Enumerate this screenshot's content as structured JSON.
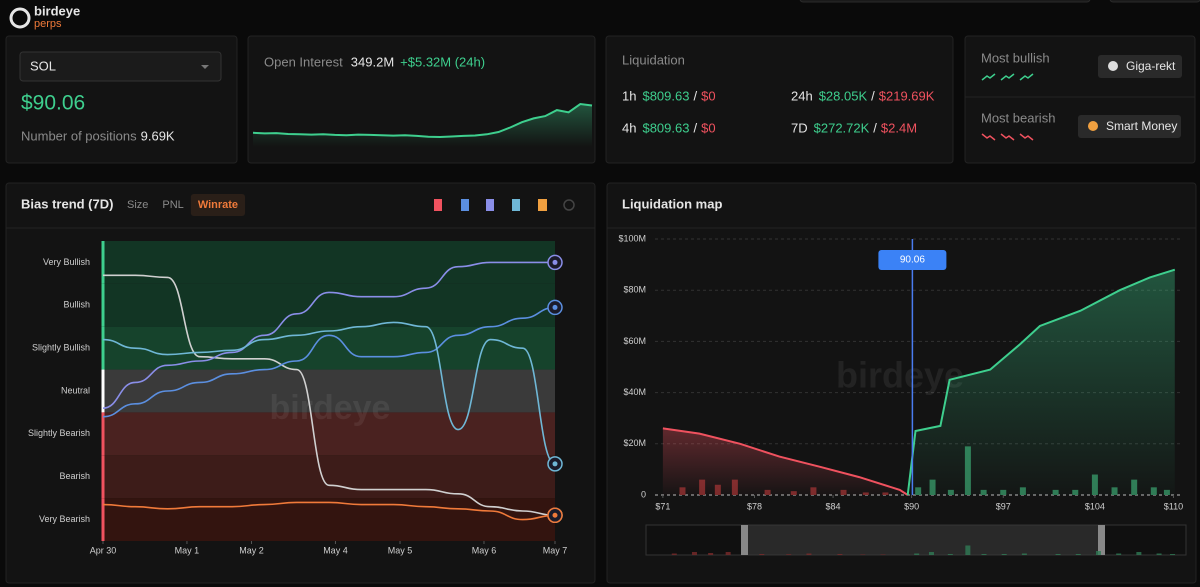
{
  "header": {
    "logo_top": "birdeye",
    "logo_bottom": "perps"
  },
  "market": {
    "symbol": "SOL",
    "price": "$90.06",
    "positions_label": "Number of positions",
    "positions_value": "9.69K"
  },
  "open_interest": {
    "label": "Open Interest",
    "value": "349.2M",
    "change": "+$5.32M (24h)",
    "color": "#3ecf8e",
    "values": [
      15,
      14.6,
      14.8,
      14.2,
      14,
      13.8,
      14,
      13.6,
      13.4,
      13.8,
      13.6,
      13.3,
      13.1,
      13.4,
      12.9,
      12.4,
      12.2,
      12.5,
      12.9,
      13.2,
      14,
      15.5,
      18.5,
      22,
      24.5,
      26,
      30,
      28.5,
      34,
      33
    ]
  },
  "liquidation": {
    "title": "Liquidation",
    "separator": "/",
    "rows": [
      {
        "period": "1h",
        "long": "$809.63",
        "short": "$0"
      },
      {
        "period": "24h",
        "long": "$28.05K",
        "short": "$219.69K"
      },
      {
        "period": "4h",
        "long": "$809.63",
        "short": "$0"
      },
      {
        "period": "7D",
        "long": "$272.72K",
        "short": "$2.4M"
      }
    ]
  },
  "sentiment": {
    "bullish_label": "Most bullish",
    "bullish_name": "Giga-rekt",
    "bearish_label": "Most bearish",
    "bearish_name": "Smart Money"
  },
  "bias_trend": {
    "title": "Bias trend (7D)",
    "tabs": [
      "Size",
      "PNL",
      "Winrate"
    ],
    "active_tab": 2,
    "watermark": "birdeye",
    "ylim": [
      -3.5,
      3.5
    ],
    "yticks": [
      {
        "value": 3,
        "label": "Very Bullish"
      },
      {
        "value": 2,
        "label": "Bullish"
      },
      {
        "value": 1,
        "label": "Slightly Bullish"
      },
      {
        "value": 0,
        "label": "Neutral"
      },
      {
        "value": -1,
        "label": "Slightly Bearish"
      },
      {
        "value": -2,
        "label": "Bearish"
      },
      {
        "value": -3,
        "label": "Very Bearish"
      }
    ],
    "band_colors": [
      "#123524",
      "#123524",
      "#16432c",
      "#3a3a3a",
      "#4a2220",
      "#3d1c19",
      "#33140f"
    ],
    "xlim": [
      0,
      7
    ],
    "xticks": [
      {
        "value": 0,
        "label": "Apr 30"
      },
      {
        "value": 1.3,
        "label": "May 1"
      },
      {
        "value": 2.3,
        "label": "May 2"
      },
      {
        "value": 3.6,
        "label": "May 4"
      },
      {
        "value": 4.6,
        "label": "May 5"
      },
      {
        "value": 5.9,
        "label": "May 6"
      },
      {
        "value": 7,
        "label": "May 7"
      }
    ],
    "x": [
      0,
      0.5,
      1,
      1.5,
      2,
      2.5,
      3,
      3.5,
      4,
      4.5,
      5,
      5.5,
      6,
      6.5,
      7
    ],
    "series": [
      {
        "color": "#d0d0d0",
        "values": [
          2.7,
          2.7,
          2.65,
          0.8,
          0.75,
          0.75,
          0.5,
          -2.2,
          -2.3,
          -2.3,
          -2.3,
          -2.4,
          -2.7,
          -2.8,
          -2.9
        ]
      },
      {
        "color": "#8a8ee8",
        "values": [
          -0.4,
          0.2,
          0.6,
          0.7,
          0.9,
          1.3,
          1.8,
          2.3,
          2.2,
          2.2,
          2.4,
          2.9,
          3,
          3,
          3
        ]
      },
      {
        "color": "#5b8fe0",
        "values": [
          -0.6,
          -0.3,
          0,
          0.2,
          0.4,
          0.5,
          0.7,
          1.3,
          0.8,
          0.8,
          0.9,
          1.3,
          1.5,
          1.7,
          1.95
        ]
      },
      {
        "color": "#6fb7d6",
        "values": [
          1.2,
          1.0,
          0.85,
          0.9,
          0.95,
          1.2,
          1.3,
          1.4,
          1.5,
          1.6,
          1.5,
          -0.9,
          1.2,
          1.0,
          -1.7
        ]
      },
      {
        "color": "#f07a3a",
        "values": [
          -2.65,
          -2.7,
          -2.75,
          -2.7,
          -2.7,
          -2.65,
          -2.6,
          -2.6,
          -2.65,
          -2.65,
          -2.7,
          -2.75,
          -2.8,
          -3,
          -2.9
        ]
      }
    ]
  },
  "liquidation_map": {
    "title": "Liquidation map",
    "watermark": "birdeye",
    "current_price": 90.06,
    "current_price_label": "90.06",
    "ylim": [
      0,
      100
    ],
    "yticks": [
      {
        "value": 100,
        "label": "$100M"
      },
      {
        "value": 80,
        "label": "$80M"
      },
      {
        "value": 60,
        "label": "$60M"
      },
      {
        "value": 40,
        "label": "$40M"
      },
      {
        "value": 20,
        "label": "$20M"
      },
      0
    ],
    "xlim": [
      70.4,
      110.5
    ],
    "xticks": [
      {
        "value": 71,
        "label": "$71"
      },
      {
        "value": 78,
        "label": "$78"
      },
      {
        "value": 84,
        "label": "$84"
      },
      {
        "value": 90,
        "label": "$90"
      },
      {
        "value": 97,
        "label": "$97"
      },
      {
        "value": 104,
        "label": "$104"
      },
      {
        "value": 110,
        "label": "$110"
      }
    ],
    "short_curve": {
      "color": "#f0525f",
      "x": [
        71,
        73.8,
        76.9,
        79.9,
        83,
        86,
        89.1,
        89.7
      ],
      "values": [
        26,
        24,
        20,
        15,
        11,
        7,
        2,
        0
      ]
    },
    "long_curve": {
      "color": "#3ecf8e",
      "x": [
        89.7,
        90.3,
        92.2,
        92.9,
        96,
        98.3,
        99.8,
        102.9,
        105.9,
        108.2,
        110.1
      ],
      "values": [
        0,
        25,
        27,
        45,
        49,
        59,
        66,
        72,
        80,
        85,
        88
      ]
    },
    "short_bars": {
      "color": "#7a2a2a",
      "x": [
        72.5,
        74,
        75.2,
        76.5,
        79,
        81,
        82.5,
        84.8,
        86.5,
        88
      ],
      "values": [
        3,
        6,
        4,
        6,
        2,
        1.5,
        3,
        2,
        1,
        1
      ]
    },
    "long_bars": {
      "color": "#2f7a55",
      "x": [
        90.5,
        91.6,
        93,
        94.3,
        95.5,
        97,
        98.5,
        101,
        102.5,
        104,
        105.5,
        107,
        108.5,
        109.5
      ],
      "values": [
        3,
        6,
        2,
        19,
        2,
        2,
        3,
        2,
        2,
        8,
        3,
        6,
        3,
        2
      ]
    }
  }
}
